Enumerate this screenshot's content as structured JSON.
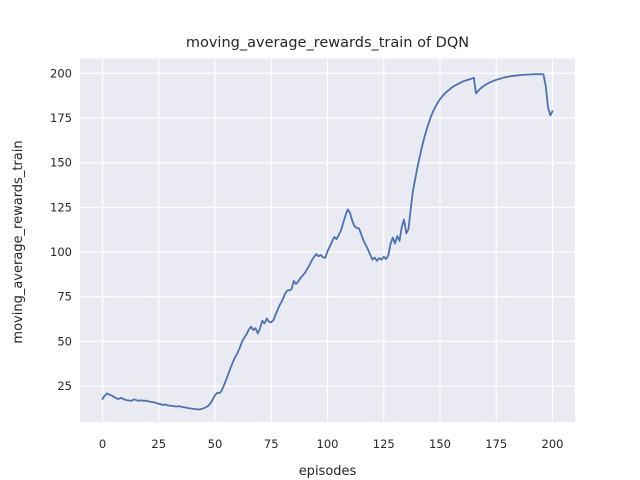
{
  "figure": {
    "background": "#ffffff"
  },
  "chart_data": {
    "type": "line",
    "title": "moving_average_rewards_train of DQN",
    "xlabel": "episodes",
    "ylabel": "moving_average_rewards_train",
    "legend": null,
    "grid": true,
    "style": "seaborn-darkgrid",
    "plot_background": "#eaeaf2",
    "gridline_color": "#ffffff",
    "line_color": "#4c72b0",
    "text_color": "#262626",
    "xlim": [
      -10,
      210
    ],
    "ylim": [
      4.9,
      208.3
    ],
    "xticks": [
      0,
      25,
      50,
      75,
      100,
      125,
      150,
      175,
      200
    ],
    "yticks": [
      25,
      50,
      75,
      100,
      125,
      150,
      175,
      200
    ],
    "series": [
      {
        "name": "moving_average_rewards_train of DQN",
        "points": [
          [
            0,
            17.8
          ],
          [
            1,
            19.6
          ],
          [
            2,
            20.9
          ],
          [
            3,
            20.2
          ],
          [
            4,
            19.8
          ],
          [
            5,
            19.0
          ],
          [
            6,
            18.3
          ],
          [
            7,
            17.7
          ],
          [
            8,
            18.4
          ],
          [
            9,
            18.0
          ],
          [
            10,
            17.4
          ],
          [
            11,
            17.1
          ],
          [
            12,
            16.9
          ],
          [
            13,
            16.8
          ],
          [
            14,
            17.6
          ],
          [
            15,
            17.1
          ],
          [
            16,
            16.8
          ],
          [
            17,
            17.0
          ],
          [
            18,
            16.8
          ],
          [
            19,
            16.9
          ],
          [
            20,
            16.6
          ],
          [
            21,
            16.3
          ],
          [
            22,
            16.1
          ],
          [
            23,
            15.9
          ],
          [
            24,
            15.5
          ],
          [
            25,
            15.1
          ],
          [
            26,
            14.8
          ],
          [
            27,
            14.4
          ],
          [
            28,
            14.7
          ],
          [
            29,
            14.2
          ],
          [
            30,
            14.0
          ],
          [
            31,
            13.9
          ],
          [
            32,
            13.7
          ],
          [
            33,
            13.6
          ],
          [
            34,
            13.8
          ],
          [
            35,
            13.4
          ],
          [
            36,
            13.2
          ],
          [
            37,
            13.0
          ],
          [
            38,
            12.7
          ],
          [
            39,
            12.5
          ],
          [
            40,
            12.3
          ],
          [
            41,
            12.2
          ],
          [
            42,
            12.0
          ],
          [
            43,
            11.9
          ],
          [
            44,
            12.2
          ],
          [
            45,
            12.6
          ],
          [
            46,
            13.2
          ],
          [
            47,
            14.0
          ],
          [
            48,
            15.3
          ],
          [
            49,
            17.6
          ],
          [
            50,
            19.9
          ],
          [
            51,
            21.3
          ],
          [
            52,
            21.0
          ],
          [
            53,
            22.6
          ],
          [
            54,
            25.5
          ],
          [
            55,
            28.8
          ],
          [
            56,
            32.0
          ],
          [
            57,
            35.5
          ],
          [
            58,
            38.5
          ],
          [
            59,
            41.4
          ],
          [
            60,
            43.4
          ],
          [
            61,
            46.5
          ],
          [
            62,
            49.8
          ],
          [
            63,
            52.0
          ],
          [
            64,
            54.0
          ],
          [
            65,
            56.6
          ],
          [
            66,
            58.2
          ],
          [
            67,
            56.4
          ],
          [
            68,
            57.4
          ],
          [
            69,
            54.5
          ],
          [
            70,
            57.2
          ],
          [
            71,
            61.6
          ],
          [
            72,
            60.0
          ],
          [
            73,
            62.8
          ],
          [
            74,
            61.0
          ],
          [
            75,
            60.7
          ],
          [
            76,
            62.0
          ],
          [
            77,
            65.3
          ],
          [
            78,
            68.2
          ],
          [
            79,
            71.0
          ],
          [
            80,
            73.2
          ],
          [
            81,
            76.3
          ],
          [
            82,
            78.3
          ],
          [
            83,
            78.6
          ],
          [
            84,
            79.2
          ],
          [
            85,
            83.8
          ],
          [
            86,
            82.1
          ],
          [
            87,
            83.6
          ],
          [
            88,
            85.5
          ],
          [
            89,
            87.0
          ],
          [
            90,
            88.4
          ],
          [
            91,
            90.6
          ],
          [
            92,
            92.7
          ],
          [
            93,
            95.3
          ],
          [
            94,
            97.2
          ],
          [
            95,
            98.9
          ],
          [
            96,
            97.6
          ],
          [
            97,
            98.4
          ],
          [
            98,
            97.0
          ],
          [
            99,
            96.8
          ],
          [
            100,
            100.5
          ],
          [
            101,
            103.1
          ],
          [
            102,
            105.8
          ],
          [
            103,
            108.5
          ],
          [
            104,
            107.2
          ],
          [
            105,
            109.6
          ],
          [
            106,
            112.1
          ],
          [
            107,
            116.5
          ],
          [
            108,
            120.6
          ],
          [
            109,
            123.9
          ],
          [
            110,
            121.9
          ],
          [
            111,
            117.4
          ],
          [
            112,
            114.4
          ],
          [
            113,
            113.5
          ],
          [
            114,
            113.2
          ],
          [
            115,
            109.9
          ],
          [
            116,
            106.4
          ],
          [
            117,
            103.9
          ],
          [
            118,
            101.4
          ],
          [
            119,
            98.4
          ],
          [
            120,
            95.7
          ],
          [
            121,
            96.9
          ],
          [
            122,
            95.1
          ],
          [
            123,
            96.6
          ],
          [
            124,
            95.7
          ],
          [
            125,
            97.4
          ],
          [
            126,
            96.1
          ],
          [
            127,
            98.1
          ],
          [
            128,
            104.6
          ],
          [
            129,
            108.1
          ],
          [
            130,
            104.8
          ],
          [
            131,
            108.9
          ],
          [
            132,
            106.2
          ],
          [
            133,
            114.2
          ],
          [
            134,
            118.2
          ],
          [
            135,
            110.5
          ],
          [
            136,
            112.9
          ],
          [
            137,
            124.4
          ],
          [
            138,
            134.5
          ],
          [
            139,
            141.2
          ],
          [
            140,
            147.6
          ],
          [
            141,
            153.5
          ],
          [
            142,
            159.0
          ],
          [
            143,
            164.0
          ],
          [
            144,
            168.4
          ],
          [
            145,
            172.4
          ],
          [
            146,
            175.9
          ],
          [
            147,
            178.9
          ],
          [
            148,
            181.4
          ],
          [
            149,
            183.6
          ],
          [
            150,
            185.5
          ],
          [
            151,
            187.1
          ],
          [
            152,
            188.5
          ],
          [
            153,
            189.7
          ],
          [
            154,
            190.8
          ],
          [
            155,
            191.8
          ],
          [
            156,
            192.7
          ],
          [
            157,
            193.4
          ],
          [
            158,
            194.1
          ],
          [
            159,
            194.7
          ],
          [
            160,
            195.3
          ],
          [
            161,
            195.8
          ],
          [
            162,
            196.2
          ],
          [
            163,
            196.6
          ],
          [
            164,
            197.0
          ],
          [
            165,
            197.5
          ],
          [
            166,
            188.7
          ],
          [
            167,
            190.3
          ],
          [
            168,
            191.5
          ],
          [
            169,
            192.6
          ],
          [
            170,
            193.4
          ],
          [
            171,
            194.2
          ],
          [
            172,
            194.8
          ],
          [
            173,
            195.4
          ],
          [
            174,
            195.9
          ],
          [
            175,
            196.4
          ],
          [
            176,
            196.8
          ],
          [
            177,
            197.1
          ],
          [
            178,
            197.5
          ],
          [
            179,
            197.8
          ],
          [
            180,
            198.0
          ],
          [
            181,
            198.3
          ],
          [
            182,
            198.5
          ],
          [
            183,
            198.6
          ],
          [
            184,
            198.8
          ],
          [
            185,
            198.9
          ],
          [
            186,
            199.1
          ],
          [
            187,
            199.2
          ],
          [
            188,
            199.3
          ],
          [
            189,
            199.3
          ],
          [
            190,
            199.4
          ],
          [
            191,
            199.4
          ],
          [
            192,
            199.5
          ],
          [
            193,
            199.5
          ],
          [
            194,
            199.5
          ],
          [
            195,
            199.5
          ],
          [
            196,
            199.4
          ],
          [
            197,
            192.5
          ],
          [
            198,
            181.0
          ],
          [
            199,
            176.5
          ],
          [
            200,
            178.8
          ]
        ]
      }
    ]
  }
}
